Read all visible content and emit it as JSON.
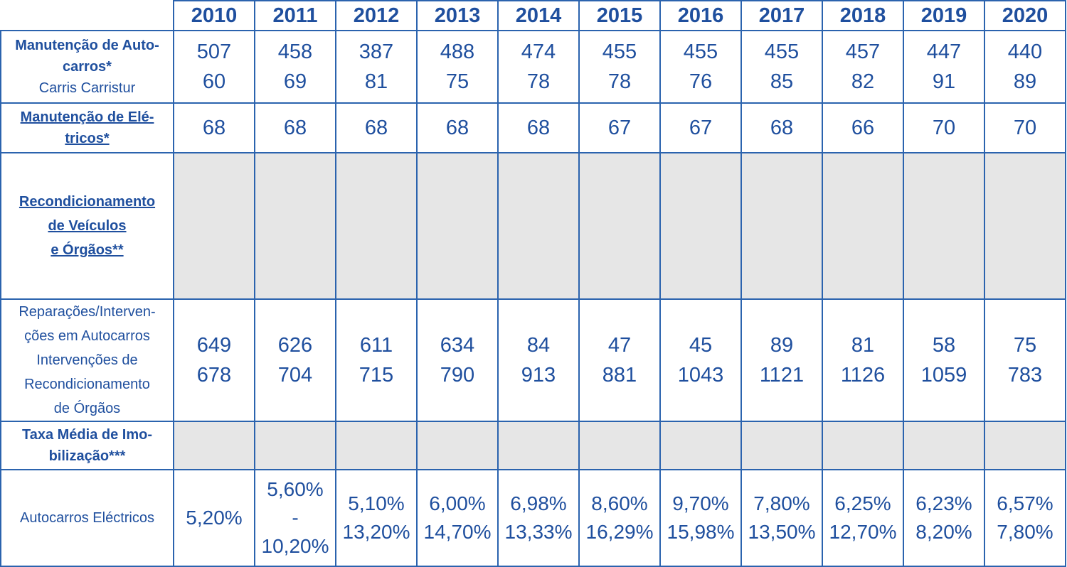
{
  "years": [
    "2010",
    "2011",
    "2012",
    "2013",
    "2014",
    "2015",
    "2016",
    "2017",
    "2018",
    "2019",
    "2020"
  ],
  "rows": {
    "autocarros": {
      "label_line1": "Manutenção de Auto-",
      "label_line2": "carros*",
      "label_sub": "Carris Carristur",
      "values": [
        [
          "507",
          "60"
        ],
        [
          "458",
          "69"
        ],
        [
          "387",
          "81"
        ],
        [
          "488",
          "75"
        ],
        [
          "474",
          "78"
        ],
        [
          "455",
          "78"
        ],
        [
          "455",
          "76"
        ],
        [
          "455",
          "85"
        ],
        [
          "457",
          "82"
        ],
        [
          "447",
          "91"
        ],
        [
          "440",
          "89"
        ]
      ]
    },
    "electricos": {
      "label_line1": "Manutenção de Elé-",
      "label_line2": "tricos*",
      "values": [
        "68",
        "68",
        "68",
        "68",
        "68",
        "67",
        "67",
        "68",
        "66",
        "70",
        "70"
      ]
    },
    "recondicionamento": {
      "label_line1": "Recondicionamento ",
      "label_line2": "de Veículos ",
      "label_line3": "e Órgãos**"
    },
    "reparacoes": {
      "label_line1": "Reparações/Interven-",
      "label_line2": "ções em Autocarros",
      "label_line3": "Intervenções de",
      "label_line4": "Recondicionamento",
      "label_line5": "de Órgãos",
      "values": [
        [
          "649",
          "678"
        ],
        [
          "626",
          "704"
        ],
        [
          "611",
          "715"
        ],
        [
          "634",
          "790"
        ],
        [
          "84",
          "913"
        ],
        [
          "47",
          "881"
        ],
        [
          "45",
          "1043"
        ],
        [
          "89",
          "1121"
        ],
        [
          "81",
          "1126"
        ],
        [
          "58",
          "1059"
        ],
        [
          "75",
          "783"
        ]
      ]
    },
    "taxa": {
      "label_line1": "Taxa Média de Imo-",
      "label_line2": "bilização***"
    },
    "autocarros_electricos": {
      "label": "Autocarros Eléctricos",
      "values": [
        [
          "5,20%"
        ],
        [
          "5,60%",
          "- 10,20%"
        ],
        [
          "5,10%",
          "13,20%"
        ],
        [
          "6,00%",
          "14,70%"
        ],
        [
          "6,98%",
          "13,33%"
        ],
        [
          "8,60%",
          "16,29%"
        ],
        [
          "9,70%",
          "15,98%"
        ],
        [
          "7,80%",
          "13,50%"
        ],
        [
          "6,25%",
          "12,70%"
        ],
        [
          "6,23%",
          "8,20%"
        ],
        [
          "6,57%",
          "7,80%"
        ]
      ]
    }
  }
}
